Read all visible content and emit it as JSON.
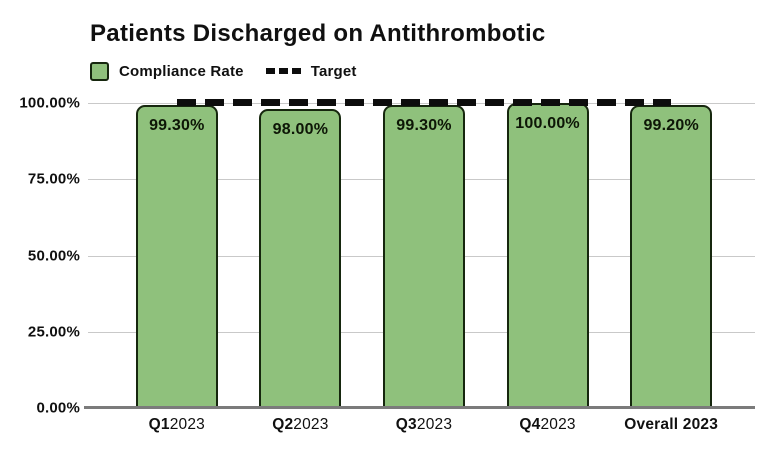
{
  "chart": {
    "title": "Patients Discharged on Antithrombotic",
    "legend": [
      {
        "label": "Compliance Rate",
        "symbol": "bar-swatch"
      },
      {
        "label": "Target",
        "symbol": "dashed-line"
      }
    ]
  },
  "colors": {
    "bar_fill": "#8FC17C",
    "bar_border": "#16270E",
    "target_line": "#0D0D0D",
    "gridline": "#C9C9C9",
    "axis_line": "#7B7B7B",
    "text": "#101010"
  },
  "chart_data": {
    "type": "bar",
    "title": "Patients Discharged on Antithrombotic",
    "categories": [
      "Q12023",
      "Q22023",
      "Q32023",
      "Q42023",
      "Overall 2023"
    ],
    "category_parts": [
      {
        "bold": "Q1",
        "rest": "2023"
      },
      {
        "bold": "Q2",
        "rest": "2023"
      },
      {
        "bold": "Q3",
        "rest": "2023"
      },
      {
        "bold": "Q4",
        "rest": "2023"
      },
      {
        "bold": "Overall 2023",
        "rest": ""
      }
    ],
    "series": [
      {
        "name": "Compliance Rate",
        "values": [
          99.3,
          98.0,
          99.3,
          100.0,
          99.2
        ]
      }
    ],
    "value_labels": [
      "99.30%",
      "98.00%",
      "99.30%",
      "100.00%",
      "99.20%"
    ],
    "target_value": 100,
    "y_ticks": [
      {
        "value": 100,
        "label": "100.00%"
      },
      {
        "value": 75,
        "label": "75.00%"
      },
      {
        "value": 50,
        "label": "50.00%"
      },
      {
        "value": 25,
        "label": "25.00%"
      },
      {
        "value": 0,
        "label": "0.00%"
      }
    ],
    "ylim": [
      0,
      100
    ],
    "xlabel": "",
    "ylabel": "",
    "grid": true,
    "legend_position": "top-left"
  }
}
